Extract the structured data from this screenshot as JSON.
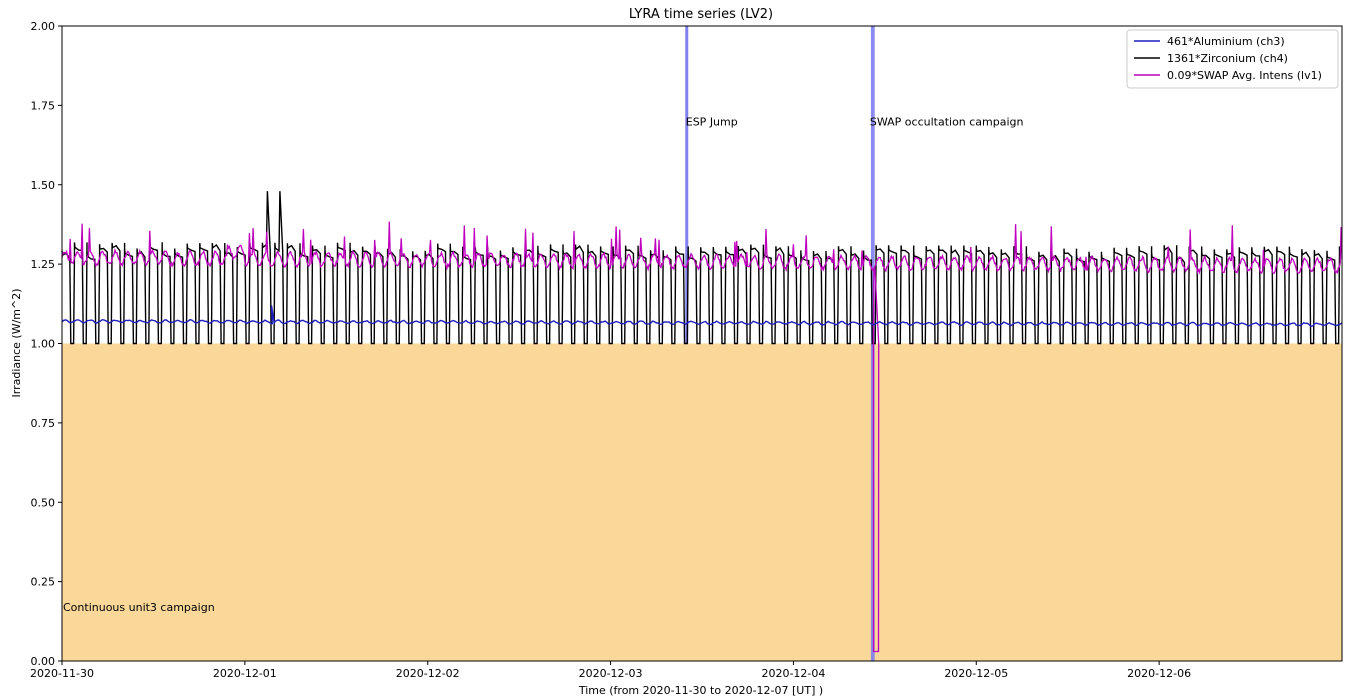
{
  "chart_data": {
    "type": "line",
    "title": "LYRA time series (LV2)",
    "xlabel": "Time (from 2020-11-30 to 2020-12-07 [UT] )",
    "ylabel": "Irradiance (W/m^2)",
    "xlim": [
      "2020-11-30T00:00",
      "2020-12-07T00:00"
    ],
    "ylim": [
      0,
      2
    ],
    "x_ticks": [
      "2020-11-30",
      "2020-12-01",
      "2020-12-02",
      "2020-12-03",
      "2020-12-04",
      "2020-12-05",
      "2020-12-06"
    ],
    "y_ticks": [
      "0.00",
      "0.25",
      "0.50",
      "0.75",
      "1.00",
      "1.25",
      "1.50",
      "1.75",
      "2.00"
    ],
    "grid": false,
    "legend_position": "top-right",
    "series": [
      {
        "name": "461*Aluminium (ch3)",
        "color": "#1f1fbf",
        "baseline": 1.07,
        "spikes": [
          {
            "x": "2020-12-01T03:30",
            "y": 1.12
          }
        ]
      },
      {
        "name": "1361*Zirconium (ch4)",
        "color": "#000000",
        "high": 1.29,
        "low": 1.0,
        "cycles_per_day": 14.6,
        "spikes": [
          {
            "x": "2020-12-01T03:30",
            "y": 1.48
          }
        ]
      },
      {
        "name": "0.09*SWAP Avg. Intens (lv1)",
        "color": "#bf00bf",
        "baseline": 1.27,
        "dip": {
          "x": "2020-12-04T10:30",
          "y": 0.03
        }
      }
    ],
    "shaded_regions": [
      {
        "label": "Continuous unit3 campaign",
        "x_start": "2020-11-30T00:00",
        "x_end": "2020-12-07T00:00",
        "y_start": 0,
        "y_end": 1.0,
        "color": "#fad89a"
      }
    ],
    "vertical_markers": [
      {
        "label": "ESP Jump",
        "x": "2020-12-03T10:00",
        "color": "#8080ee"
      },
      {
        "label": "SWAP occultation campaign",
        "x_start": "2020-12-04T10:10",
        "x_end": "2020-12-04T10:40",
        "color": "#8080ee"
      }
    ]
  }
}
